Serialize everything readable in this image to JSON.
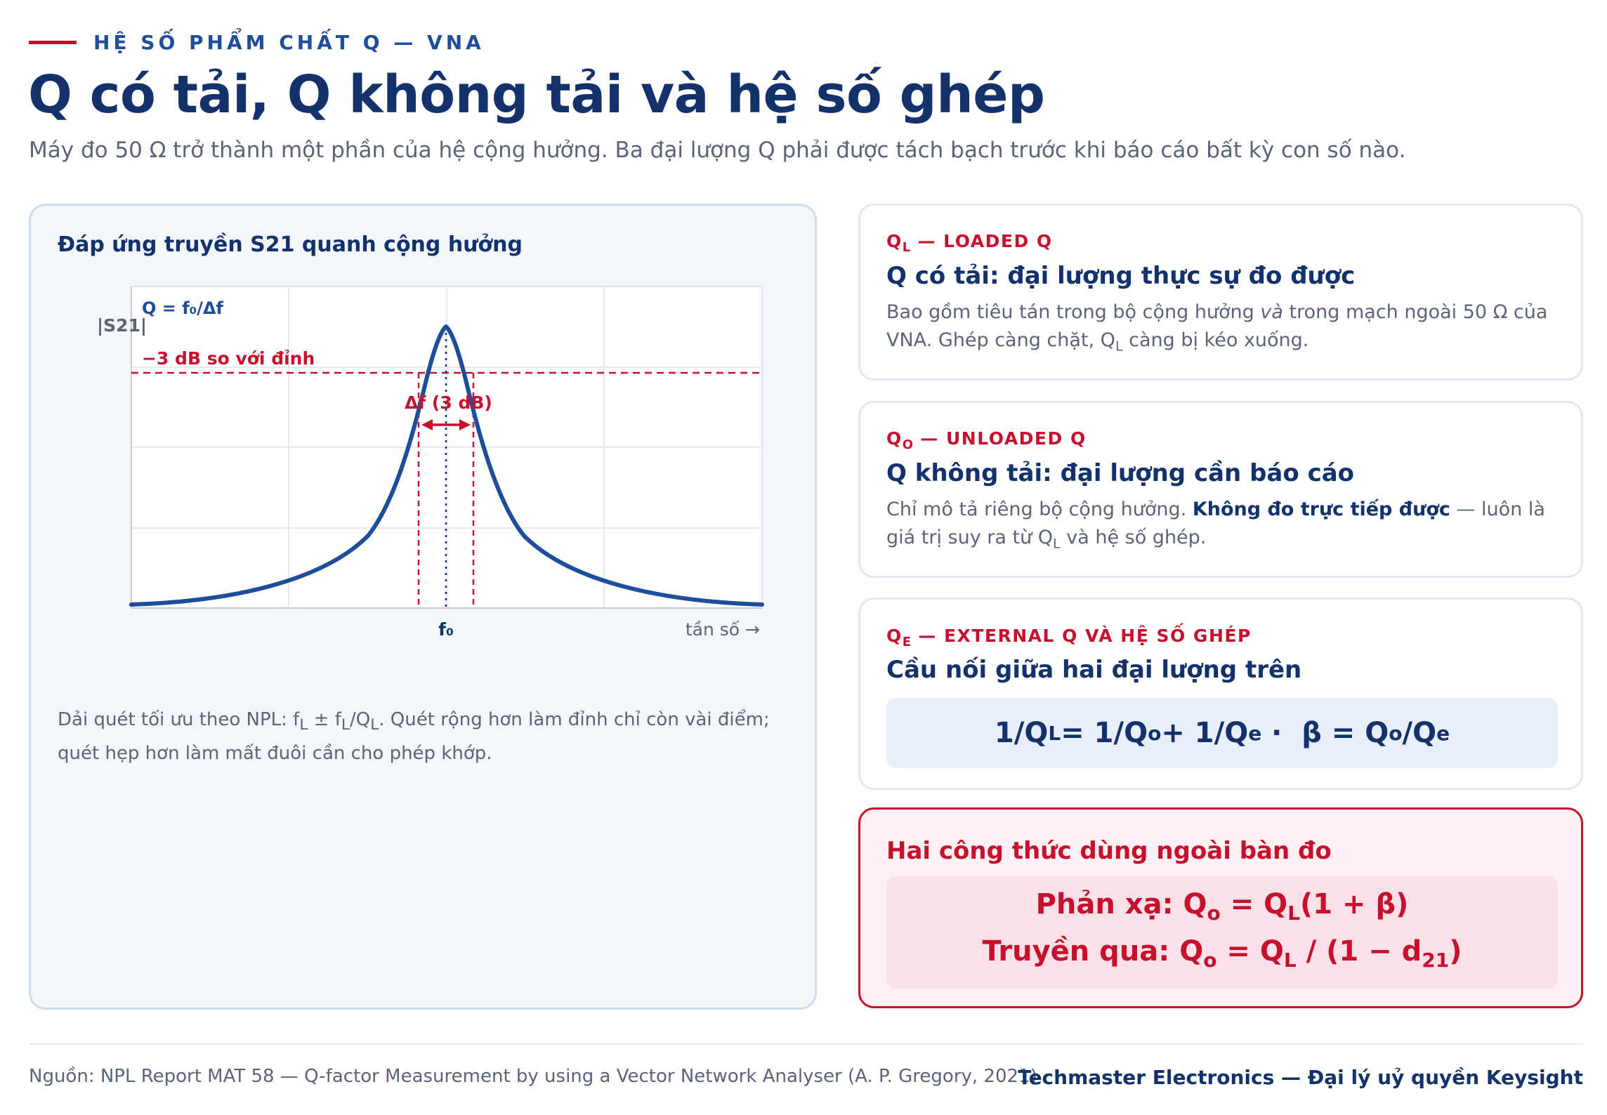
{
  "header": {
    "eyebrow": "HỆ SỐ PHẨM CHẤT Q — VNA",
    "title": "Q có tải, Q không tải và hệ số ghép",
    "subtitle": "Máy đo 50 Ω trở thành một phần của hệ cộng hưởng. Ba đại lượng Q phải được tách bạch trước khi báo cáo bất kỳ con số nào."
  },
  "figure": {
    "panel_title": "Đáp ứng truyền S21 quanh cộng hưởng",
    "y_axis_label": "|S21|",
    "q_formula": "Q = f₀/Δf",
    "minus3db_label": "−3 dB so với đỉnh",
    "bandwidth_label": "Δf (3 dB)",
    "f0_label": "f₀",
    "x_axis_label": "tần số →",
    "note_html": "Dải quét tối ưu theo NPL: f<sub>L</sub> ± f<sub>L</sub>/Q<sub>L</sub>. Quét rộng hơn làm đỉnh chỉ còn vài điểm; quét hẹp hơn làm mất đuôi cần cho phép khớp."
  },
  "cards": {
    "loaded": {
      "tag_html": "Q<sub>L</sub> — LOADED Q",
      "title": "Q có tải: đại lượng thực sự đo được",
      "body_html": "Bao gồm tiêu tán trong bộ cộng hưởng <i>và</i> trong mạch ngoài 50 Ω của VNA. Ghép càng chặt, Q<sub>L</sub> càng bị kéo xuống."
    },
    "unloaded": {
      "tag_html": "Q<sub>O</sub> — UNLOADED Q",
      "title": "Q không tải: đại lượng cần báo cáo",
      "body_html": "Chỉ mô tả riêng bộ cộng hưởng. <b>Không đo trực tiếp được</b> — luôn là giá trị suy ra từ Q<sub>L</sub> và hệ số ghép."
    },
    "external": {
      "tag_html": "Q<sub>E</sub> — EXTERNAL Q VÀ HỆ SỐ GHÉP",
      "title": "Cầu nối giữa hai đại lượng trên",
      "formula_html": "1/Q<sub>L</sub> = 1/Q<sub>o</sub> + 1/Q<sub>e</sub> &nbsp;·&nbsp; β = Q<sub>o</sub>/Q<sub>e</sub>"
    },
    "alert": {
      "title": "Hai công thức dùng ngoài bàn đo",
      "line1_html": "Phản xạ: Q<sub>o</sub> = Q<sub>L</sub>(1 + β)",
      "line2_html": "Truyền qua: Q<sub>o</sub> = Q<sub>L</sub> / (1 − d<sub>21</sub>)"
    }
  },
  "footer": {
    "source": "Nguồn: NPL Report MAT 58 — Q-factor Measurement by using a Vector Network Analyser (A. P. Gregory, 2021)",
    "brand": "Techmaster Electronics — Đại lý uỷ quyền Keysight"
  },
  "colors": {
    "navy": "#13326b",
    "curve": "#1e4d9b",
    "accent_red": "#c8102e",
    "muted": "#5a6478"
  }
}
